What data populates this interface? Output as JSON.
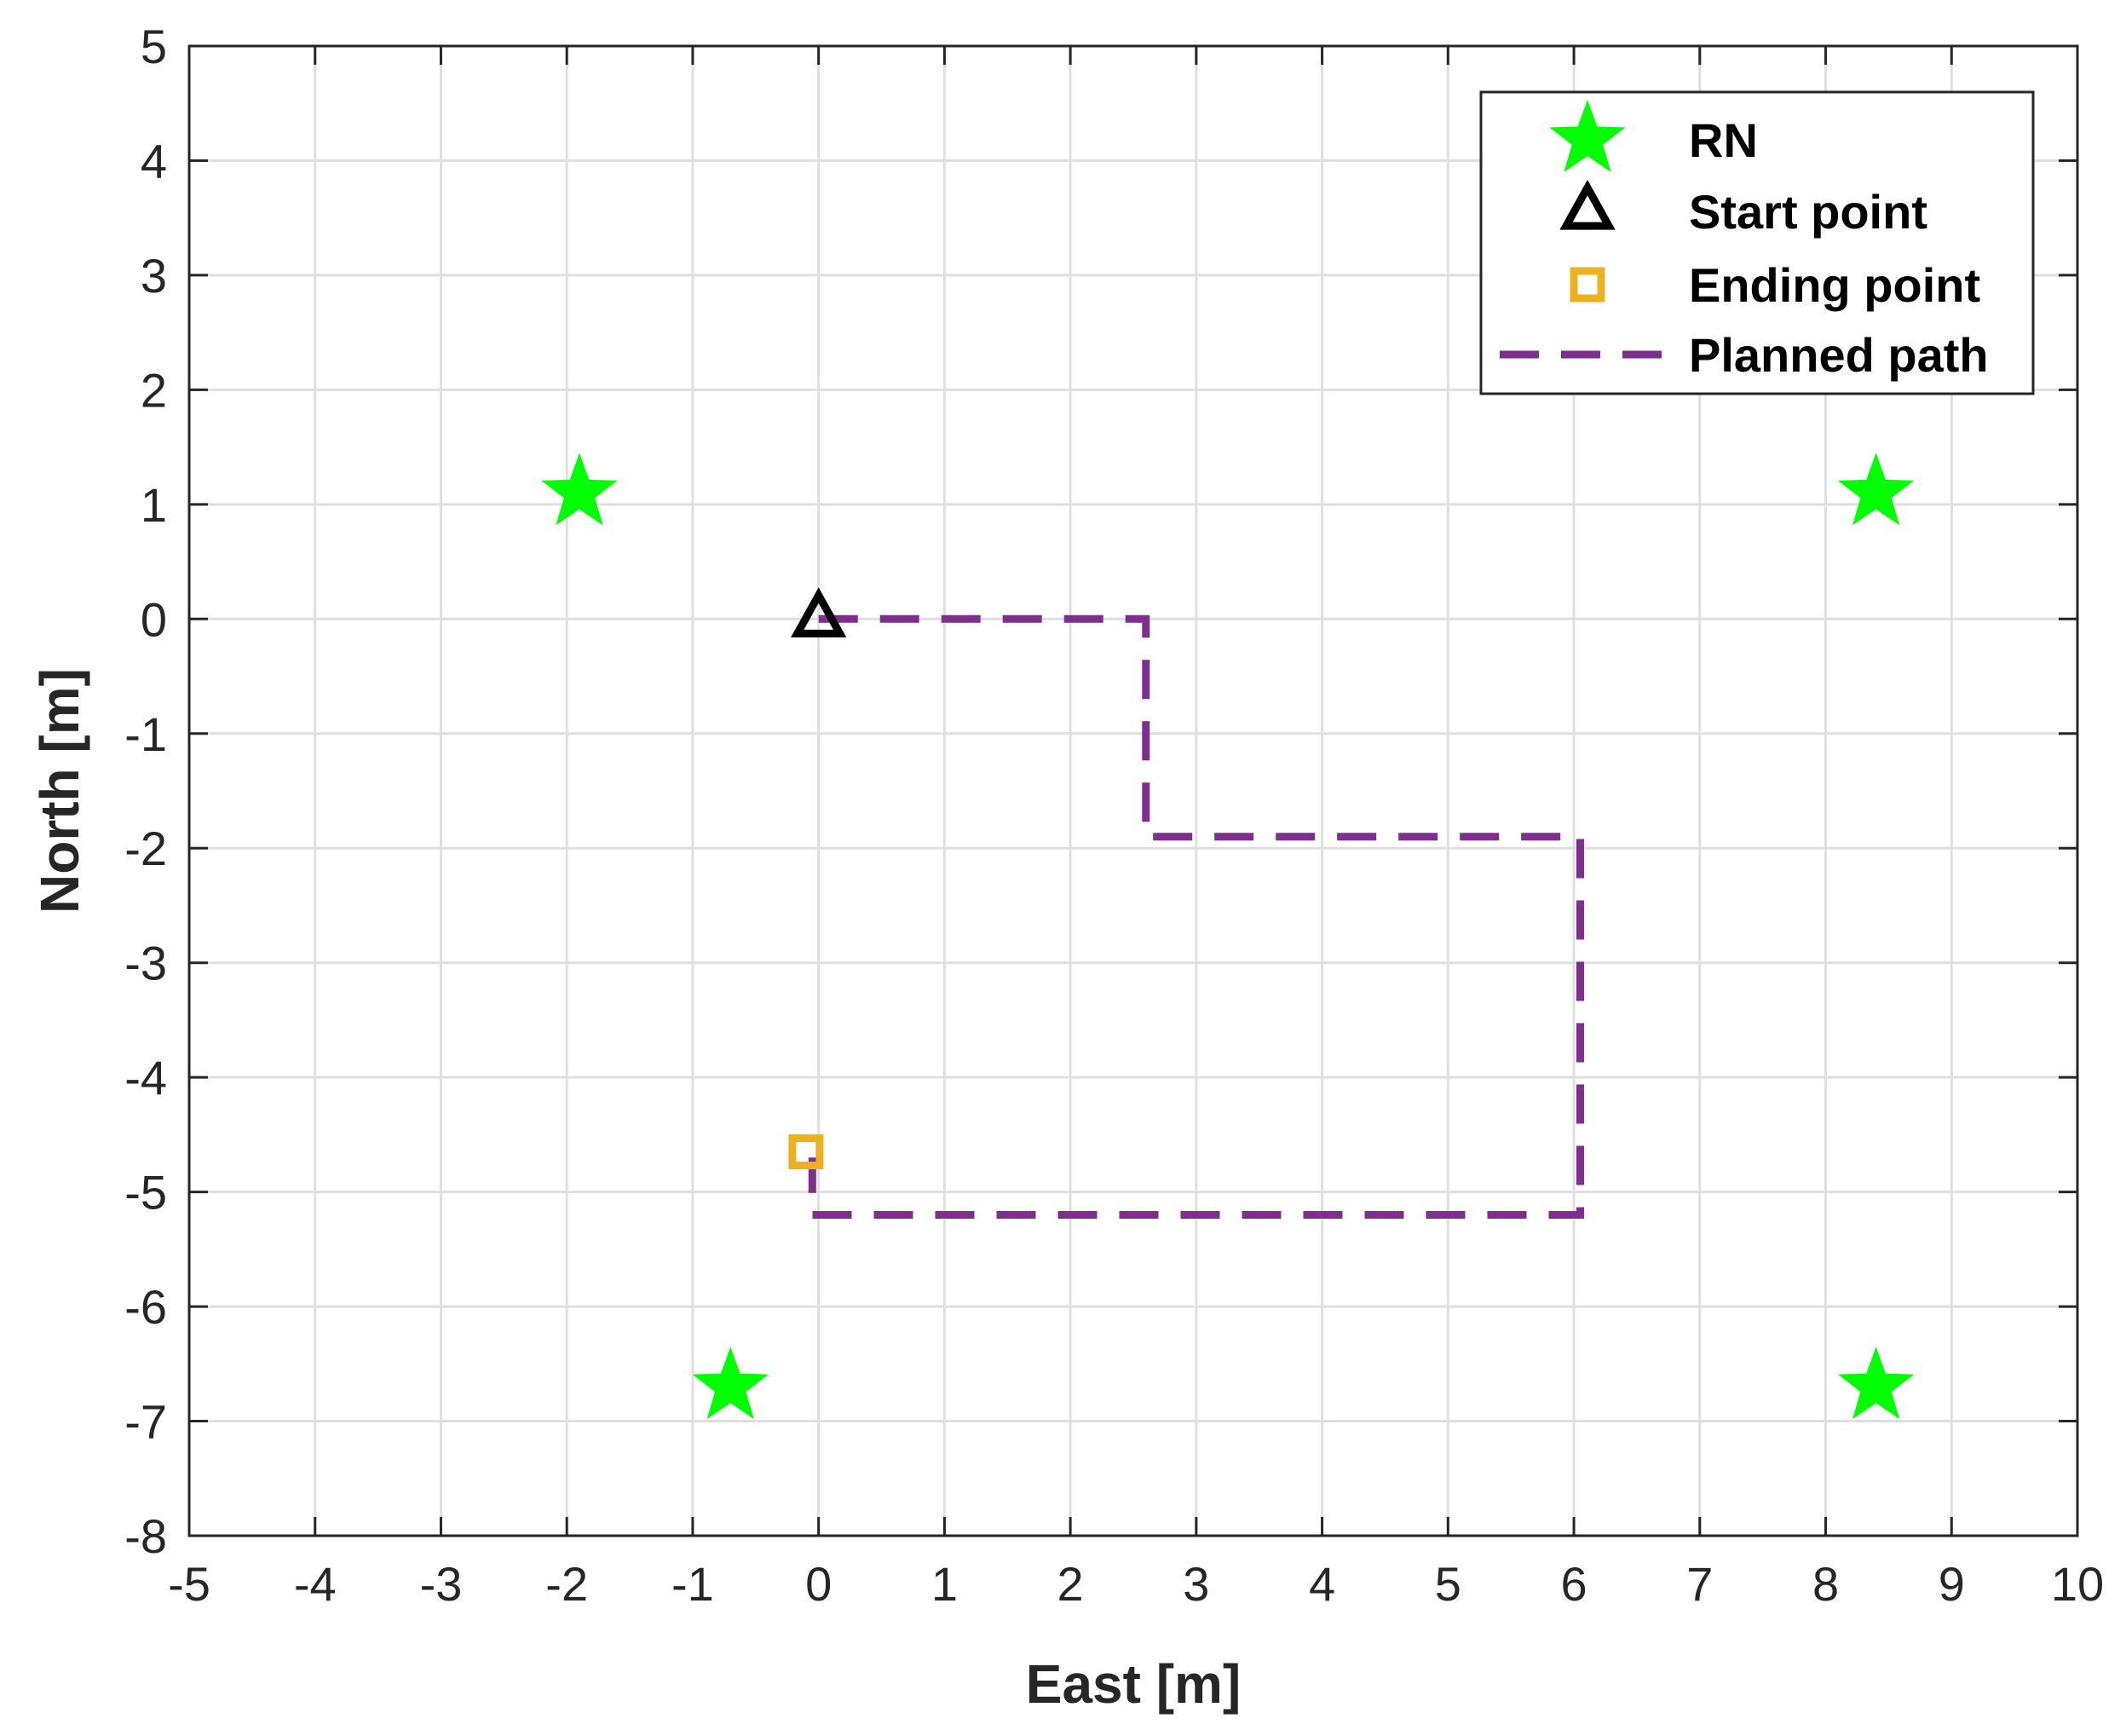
{
  "chart_data": {
    "type": "scatter",
    "xlabel": "East [m]",
    "ylabel": "North [m]",
    "xlim": [
      -5,
      10
    ],
    "ylim": [
      -8,
      5
    ],
    "xticks": [
      -5,
      -4,
      -3,
      -2,
      -1,
      0,
      1,
      2,
      3,
      4,
      5,
      6,
      7,
      8,
      9,
      10
    ],
    "yticks": [
      -8,
      -7,
      -6,
      -5,
      -4,
      -3,
      -2,
      -1,
      0,
      1,
      2,
      3,
      4,
      5
    ],
    "grid": true,
    "legend_position": "top-right",
    "series": [
      {
        "name": "RN",
        "marker": "star",
        "color": "#00ff00",
        "points": [
          [
            -1.9,
            1.1
          ],
          [
            8.4,
            1.1
          ],
          [
            -0.7,
            -6.7
          ],
          [
            8.4,
            -6.7
          ]
        ]
      },
      {
        "name": "Start point",
        "marker": "triangle",
        "color": "#000000",
        "points": [
          [
            0,
            0
          ]
        ]
      },
      {
        "name": "Ending point",
        "marker": "square",
        "color": "#edb120",
        "points": [
          [
            -0.1,
            -4.65
          ]
        ]
      },
      {
        "name": "Planned path",
        "marker": "dashed-line",
        "color": "#7e2f8e",
        "points": [
          [
            0,
            0
          ],
          [
            2.6,
            0
          ],
          [
            2.6,
            -1.9
          ],
          [
            6.05,
            -1.9
          ],
          [
            6.05,
            -5.2
          ],
          [
            -0.05,
            -5.2
          ],
          [
            -0.05,
            -4.7
          ]
        ]
      }
    ]
  }
}
